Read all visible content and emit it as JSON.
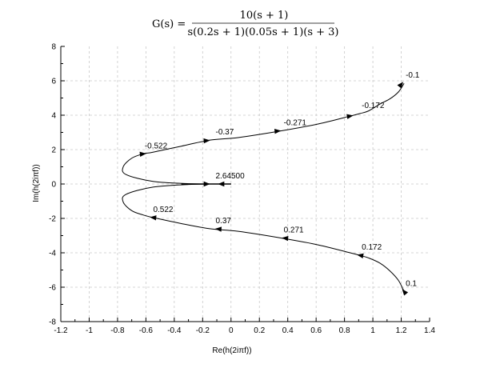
{
  "chart_data": {
    "type": "line",
    "title": "G(s) = 10(s + 1) / s(0.2s + 1)(0.05s + 1)(s + 3)",
    "title_parts": {
      "lhs": "G(s) =",
      "numerator": "10(s + 1)",
      "denominator": "s(0.2s + 1)(0.05s + 1)(s + 3)"
    },
    "xlabel": "Re(h(2iπf))",
    "ylabel": "Im(h(2iπf))",
    "xlim": [
      -1.2,
      1.4
    ],
    "ylim": [
      -8,
      8
    ],
    "x_ticks": [
      "-1.2",
      "-1",
      "-0.8",
      "-0.6",
      "-0.4",
      "-0.2",
      "0",
      "0.2",
      "0.4",
      "0.6",
      "0.8",
      "1",
      "1.2",
      "1.4"
    ],
    "y_ticks": [
      "-8",
      "-6",
      "-4",
      "-2",
      "0",
      "2",
      "4",
      "6",
      "8"
    ],
    "grid": true,
    "series": [
      {
        "x": [
          1.22,
          1.18,
          1.12,
          1.05,
          0.97,
          0.91,
          0.84,
          0.62,
          0.36,
          0.05,
          -0.15,
          -0.35,
          -0.55,
          -0.62,
          -0.7,
          -0.76,
          -0.74,
          -0.55,
          -0.3,
          -0.12,
          -0.03,
          0.0
        ],
        "y": [
          5.85,
          5.35,
          4.95,
          4.65,
          4.25,
          4.1,
          3.95,
          3.5,
          3.1,
          2.7,
          2.55,
          2.2,
          1.85,
          1.75,
          1.5,
          1.0,
          0.55,
          0.15,
          0.02,
          0.0,
          0.0,
          0.0
        ]
      },
      {
        "x": [
          1.22,
          1.18,
          1.12,
          1.05,
          0.97,
          0.91,
          0.84,
          0.62,
          0.36,
          0.05,
          -0.15,
          -0.35,
          -0.55,
          -0.62,
          -0.7,
          -0.76,
          -0.74,
          -0.55,
          -0.3,
          -0.12,
          -0.03,
          0.0
        ],
        "y": [
          -6.25,
          -5.6,
          -5.05,
          -4.6,
          -4.3,
          -4.15,
          -4.0,
          -3.55,
          -3.15,
          -2.75,
          -2.6,
          -2.3,
          -1.95,
          -1.8,
          -1.55,
          -1.05,
          -0.6,
          -0.18,
          -0.03,
          0.0,
          0.0,
          0.0
        ]
      }
    ],
    "annotations": [
      {
        "text": "-0.1",
        "x": 1.22,
        "y": 5.85
      },
      {
        "text": "-0.172",
        "x": 0.91,
        "y": 4.1
      },
      {
        "text": "-0.271",
        "x": 0.36,
        "y": 3.1
      },
      {
        "text": "-0.37",
        "x": -0.12,
        "y": 2.55
      },
      {
        "text": "-0.522",
        "x": -0.62,
        "y": 1.75
      },
      {
        "text": "2.64500",
        "x": -0.12,
        "y": 0.0
      },
      {
        "text": "0.522",
        "x": -0.56,
        "y": -1.95
      },
      {
        "text": "0.37",
        "x": -0.12,
        "y": -2.6
      },
      {
        "text": "0.271",
        "x": 0.36,
        "y": -3.15
      },
      {
        "text": "0.172",
        "x": 0.91,
        "y": -4.15
      },
      {
        "text": "0.1",
        "x": 1.22,
        "y": -6.25
      }
    ],
    "arrows_upper": [
      {
        "x": 1.2,
        "y": 5.8,
        "dx": 0.025,
        "dy": 0.25
      },
      {
        "x": 0.84,
        "y": 3.95,
        "dx": 0.05,
        "dy": 0.07
      },
      {
        "x": 0.33,
        "y": 3.08,
        "dx": 0.05,
        "dy": 0.04
      },
      {
        "x": -0.17,
        "y": 2.52,
        "dx": 0.05,
        "dy": 0.03
      },
      {
        "x": -0.62,
        "y": 1.75,
        "dx": 0.05,
        "dy": 0.04
      },
      {
        "x": -0.17,
        "y": 0.0,
        "dx": 0.05,
        "dy": 0.0
      }
    ],
    "arrows_lower": [
      {
        "x": 1.22,
        "y": -6.25,
        "dx": -0.02,
        "dy": 0.2
      },
      {
        "x": 0.91,
        "y": -4.15,
        "dx": -0.05,
        "dy": 0.07
      },
      {
        "x": 0.38,
        "y": -3.15,
        "dx": -0.05,
        "dy": 0.04
      },
      {
        "x": -0.09,
        "y": -2.62,
        "dx": -0.05,
        "dy": 0.03
      },
      {
        "x": -0.55,
        "y": -1.95,
        "dx": -0.05,
        "dy": 0.04
      },
      {
        "x": -0.07,
        "y": 0.0,
        "dx": -0.05,
        "dy": 0.0
      }
    ]
  }
}
